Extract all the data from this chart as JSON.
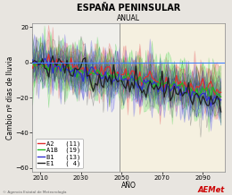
{
  "title": "ESPAÑA PENINSULAR",
  "subtitle": "ANUAL",
  "xlabel": "AÑO",
  "ylabel": "Cambio nº dias de lluvia",
  "xlim": [
    2006,
    2101
  ],
  "ylim": [
    -62,
    22
  ],
  "yticks": [
    20,
    0,
    -20,
    -40,
    -60
  ],
  "xticks": [
    2010,
    2030,
    2050,
    2070,
    2090
  ],
  "x_start": 2006,
  "x_end": 2099,
  "split_year": 2049,
  "scenarios": [
    "A2",
    "A1B",
    "B1",
    "E1"
  ],
  "scenario_counts": [
    11,
    19,
    13,
    4
  ],
  "scenario_colors": [
    "#e03030",
    "#20b820",
    "#3030d0",
    "#202020"
  ],
  "scenario_band_colors": [
    "#f0a0a0",
    "#a0f0a0",
    "#a0a0f8",
    "#d0d0d0"
  ],
  "bg_color_left": "#f0efeb",
  "bg_color_right": "#f5f0e0",
  "fig_color": "#e8e5e0",
  "hline_color": "#4080ff",
  "vline_color": "#888888",
  "legend_fontsize": 5.0,
  "title_fontsize": 7.0,
  "subtitle_fontsize": 5.5,
  "label_fontsize": 5.5,
  "tick_fontsize": 5.0,
  "seed": 12
}
